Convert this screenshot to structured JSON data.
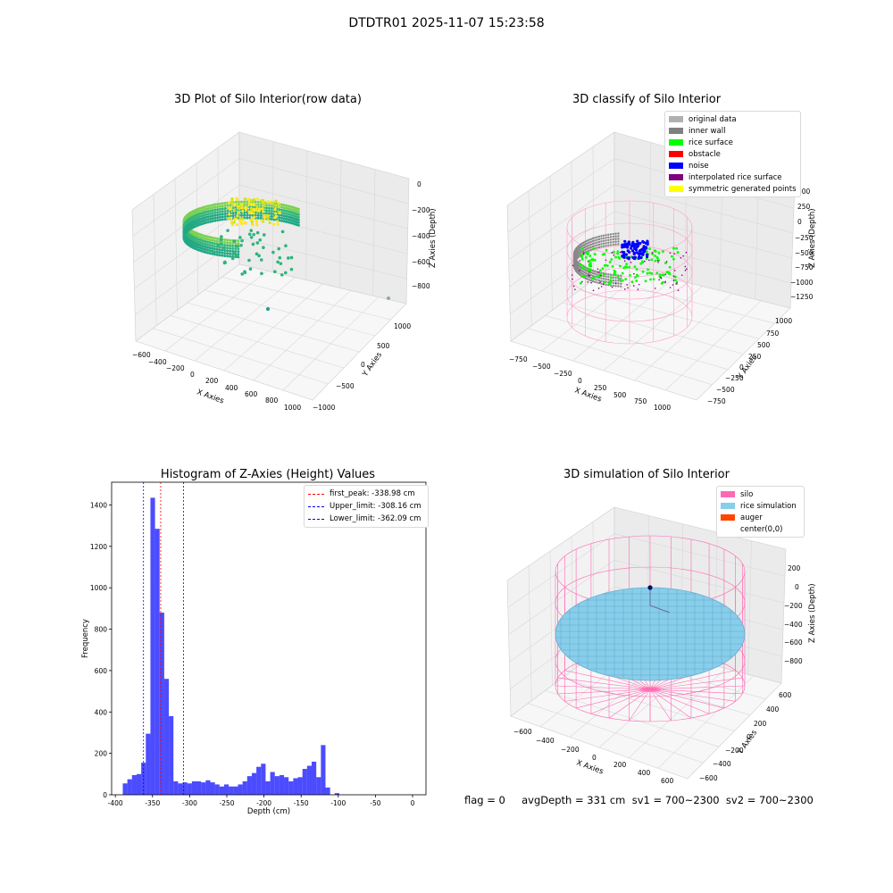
{
  "figure": {
    "suptitle": "DTDTR01 2025-11-07 15:23:58",
    "status_text": "flag = 0     avgDepth = 331 cm  sv1 = 700~2300  sv2 = 700~2300"
  },
  "chart_data": [
    {
      "type": "scatter3d",
      "title": "3D Plot of Silo Interior(row data)",
      "xlabel": "X Axies",
      "ylabel": "Y Axies",
      "zlabel": "Z Axies (Depth)",
      "xticks": [
        "−600",
        "−400",
        "−200",
        "0",
        "200",
        "400",
        "600",
        "800",
        "1000"
      ],
      "yticks": [
        "1000",
        "500",
        "0",
        "−500",
        "−1000"
      ],
      "zticks": [
        "0",
        "−200",
        "−400",
        "−600",
        "−800"
      ],
      "xlim": [
        -600,
        1000
      ],
      "ylim": [
        -1000,
        1000
      ],
      "zlim": [
        -900,
        0
      ],
      "colormap": "viridis-like (yellow high, teal low)",
      "grid": true
    },
    {
      "type": "scatter3d",
      "title": "3D classify of Silo Interior",
      "xlabel": "X Axies",
      "ylabel": "Y Axies",
      "zlabel": "Z Axies (Depth)",
      "xticks": [
        "−750",
        "−500",
        "−250",
        "0",
        "250",
        "500",
        "750",
        "1000"
      ],
      "yticks": [
        "1000",
        "750",
        "500",
        "250",
        "0",
        "−250",
        "−500",
        "−750"
      ],
      "zticks": [
        "500",
        "250",
        "0",
        "−250",
        "−500",
        "−750",
        "−1000",
        "−1250"
      ],
      "legend": [
        {
          "label": "original data",
          "color": "#b0b0b0"
        },
        {
          "label": "inner wall",
          "color": "#808080"
        },
        {
          "label": "rice surface",
          "color": "#00ff00"
        },
        {
          "label": "obstacle",
          "color": "#ff0000"
        },
        {
          "label": "noise",
          "color": "#0000ff"
        },
        {
          "label": "interpolated rice surface",
          "color": "#800080"
        },
        {
          "label": "symmetric generated points",
          "color": "#ffff00"
        }
      ],
      "legend_position": "top-right",
      "grid": true
    },
    {
      "type": "bar",
      "title": "Histogram of Z-Axies (Height) Values",
      "xlabel": "Depth (cm)",
      "ylabel": "Frequency",
      "xlim": [
        -405,
        18
      ],
      "ylim": [
        0,
        1510
      ],
      "xticks": [
        -400,
        -350,
        -300,
        -250,
        -200,
        -150,
        -100,
        -50,
        0
      ],
      "yticks": [
        0,
        200,
        400,
        600,
        800,
        1000,
        1200,
        1400
      ],
      "bin_width": 6.2,
      "bin_start": -390,
      "values": [
        55,
        75,
        95,
        100,
        155,
        295,
        1435,
        1285,
        880,
        560,
        380,
        65,
        55,
        60,
        55,
        65,
        65,
        60,
        70,
        60,
        50,
        40,
        50,
        40,
        40,
        50,
        65,
        90,
        105,
        135,
        150,
        65,
        110,
        90,
        95,
        85,
        65,
        80,
        85,
        125,
        140,
        160,
        85,
        240,
        35,
        0,
        8
      ],
      "bar_color": "#0000ff",
      "legend": [
        {
          "label": "first_peak: -338.98 cm",
          "value": -338.98,
          "color": "#ff0000"
        },
        {
          "label": "Upper_limit: -308.16 cm",
          "value": -308.16,
          "color": "#0000ff"
        },
        {
          "label": "Lower_limit: -362.09 cm",
          "value": -362.09,
          "color": "#0000ff"
        }
      ],
      "legend_position": "top-right",
      "grid": false
    },
    {
      "type": "surface3d",
      "title": "3D simulation of Silo Interior",
      "xlabel": "X Axies",
      "ylabel": "Y Axies",
      "zlabel": "Z Axies (Depth)",
      "xticks": [
        "−600",
        "−400",
        "−200",
        "0",
        "200",
        "400",
        "600"
      ],
      "yticks": [
        "600",
        "400",
        "200",
        "0",
        "−200",
        "−400",
        "−600"
      ],
      "zticks": [
        "200",
        "0",
        "−200",
        "−400",
        "−600",
        "−800"
      ],
      "legend": [
        {
          "label": "silo",
          "color": "#ff69b4"
        },
        {
          "label": "rice simulation",
          "color": "#87ceeb"
        },
        {
          "label": "auger",
          "color": "#ff4500"
        },
        {
          "label": "center(0,0)",
          "color": "#ffffff"
        }
      ],
      "legend_position": "top-right",
      "grid": true
    }
  ]
}
